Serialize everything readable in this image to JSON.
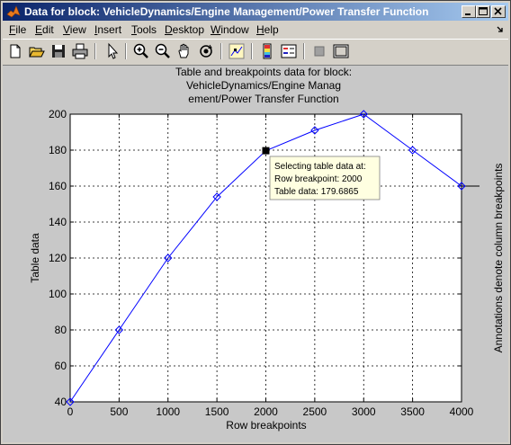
{
  "window": {
    "title": "Data for block: VehicleDynamics/Engine Management/Power Transfer Function"
  },
  "menu": [
    {
      "label": "File",
      "u": "F",
      "rest": "ile"
    },
    {
      "label": "Edit",
      "u": "E",
      "rest": "dit"
    },
    {
      "label": "View",
      "u": "V",
      "rest": "iew"
    },
    {
      "label": "Insert",
      "u": "I",
      "rest": "nsert"
    },
    {
      "label": "Tools",
      "u": "T",
      "rest": "ools"
    },
    {
      "label": "Desktop",
      "u": "D",
      "rest": "esktop"
    },
    {
      "label": "Window",
      "u": "W",
      "rest": "indow"
    },
    {
      "label": "Help",
      "u": "H",
      "rest": "elp"
    }
  ],
  "toolbar": [
    "new-file-icon",
    "open-folder-icon",
    "save-icon",
    "print-icon",
    "select-arrow-icon",
    "zoom-in-icon",
    "zoom-out-icon",
    "pan-hand-icon",
    "rotate-3d-icon",
    "data-cursor-icon",
    "colorbar-icon",
    "legend-icon",
    "hide-plot-tools-icon",
    "show-plot-tools-icon"
  ],
  "plot": {
    "title_lines": [
      "Table and breakpoints data for block:",
      "VehicleDynamics/Engine Manag",
      "ement/Power Transfer Function"
    ],
    "xlabel": "Row breakpoints",
    "ylabel": "Table data",
    "right_label": "Annotations denote column breakpoints",
    "tooltip": [
      "Selecting table data at:",
      "Row breakpoint: 2000",
      "Table data: 179.6865"
    ]
  },
  "chart_data": {
    "type": "line",
    "x": [
      0,
      500,
      1000,
      1500,
      2000,
      2500,
      3000,
      3500,
      4000
    ],
    "y": [
      40,
      80,
      120,
      154,
      179.6865,
      191,
      200,
      180,
      160
    ],
    "xlim": [
      0,
      4000
    ],
    "ylim": [
      40,
      200
    ],
    "xticks": [
      "0",
      "500",
      "1000",
      "1500",
      "2000",
      "2500",
      "3000",
      "3500",
      "4000"
    ],
    "yticks": [
      "40",
      "60",
      "80",
      "100",
      "120",
      "140",
      "160",
      "180",
      "200"
    ],
    "grid": true,
    "selected_index": 4,
    "line_color": "#0000ff"
  }
}
